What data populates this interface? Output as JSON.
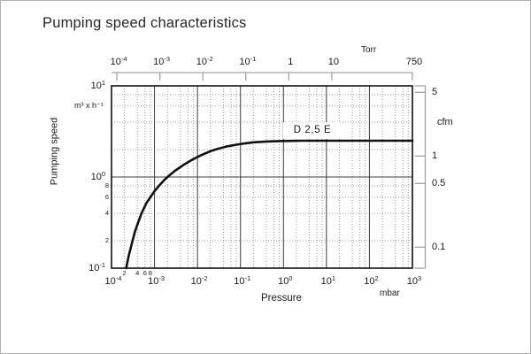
{
  "chart_data": {
    "type": "line",
    "title": "Pumping speed characteristics",
    "x_axis": {
      "label": "Pressure",
      "unit": "mbar",
      "scale": "log",
      "range": [
        0.0001,
        1000
      ],
      "ticks": [
        {
          "v": 0.0001,
          "m": "10",
          "e": "-4"
        },
        {
          "v": 0.001,
          "m": "10",
          "e": "-3"
        },
        {
          "v": 0.01,
          "m": "10",
          "e": "-2"
        },
        {
          "v": 0.1,
          "m": "10",
          "e": "-1"
        },
        {
          "v": 1,
          "m": "10",
          "e": "0"
        },
        {
          "v": 10,
          "m": "10",
          "e": "1"
        },
        {
          "v": 100,
          "m": "10",
          "e": "2"
        },
        {
          "v": 1000,
          "m": "10",
          "e": "3"
        }
      ],
      "minor_labels": [
        {
          "v": 0.0002,
          "m": "2"
        },
        {
          "v": 0.0004,
          "m": "4"
        },
        {
          "v": 0.0006,
          "m": "6"
        },
        {
          "v": 0.0008,
          "m": "8"
        }
      ],
      "minor_grid_multiples": [
        2,
        4,
        6,
        8
      ]
    },
    "y_axis": {
      "label": "Pumping speed",
      "unit": "m³ x h⁻¹",
      "scale": "log",
      "range": [
        0.1,
        10
      ],
      "ticks": [
        {
          "v": 10,
          "m": "10",
          "e": "1"
        },
        {
          "v": 1,
          "m": "10",
          "e": "0"
        },
        {
          "v": 0.1,
          "m": "10",
          "e": "-1"
        }
      ],
      "minor_labels": [
        {
          "v": 0.8,
          "m": "8"
        },
        {
          "v": 0.6,
          "m": "6"
        },
        {
          "v": 0.4,
          "m": "4"
        },
        {
          "v": 0.2,
          "m": "2"
        }
      ],
      "minor_grid_multiples": [
        2,
        4,
        6,
        8
      ]
    },
    "top_axis": {
      "unit": "Torr",
      "torr_per_mbar": 0.75,
      "ticks": [
        {
          "v": 0.0001,
          "m": "10",
          "e": "-4"
        },
        {
          "v": 0.001,
          "m": "10",
          "e": "-3"
        },
        {
          "v": 0.01,
          "m": "10",
          "e": "-2"
        },
        {
          "v": 0.1,
          "m": "10",
          "e": "-1"
        },
        {
          "v": 1,
          "m": "1"
        },
        {
          "v": 10,
          "m": "10"
        },
        {
          "v": 750,
          "m": "750"
        }
      ]
    },
    "right_axis": {
      "unit": "cfm",
      "cfm_per_m3h": 0.58858,
      "ticks": [
        {
          "v": 5,
          "m": "5"
        },
        {
          "v": 1,
          "m": "1"
        },
        {
          "v": 0.5,
          "m": "0.5"
        },
        {
          "v": 0.1,
          "m": "0.1"
        }
      ]
    },
    "series": [
      {
        "name": "D 2,5 E",
        "plateau_speed_m3h": 2.5,
        "points": [
          [
            0.00022,
            0.1
          ],
          [
            0.00025,
            0.135
          ],
          [
            0.0003,
            0.19
          ],
          [
            0.00035,
            0.25
          ],
          [
            0.0004,
            0.3
          ],
          [
            0.0005,
            0.4
          ],
          [
            0.00065,
            0.52
          ],
          [
            0.0008,
            0.6
          ],
          [
            0.001,
            0.7
          ],
          [
            0.0013,
            0.81
          ],
          [
            0.0017,
            0.93
          ],
          [
            0.002,
            1.0
          ],
          [
            0.003,
            1.17
          ],
          [
            0.005,
            1.38
          ],
          [
            0.008,
            1.57
          ],
          [
            0.012,
            1.73
          ],
          [
            0.02,
            1.92
          ],
          [
            0.03,
            2.04
          ],
          [
            0.05,
            2.17
          ],
          [
            0.08,
            2.26
          ],
          [
            0.12,
            2.33
          ],
          [
            0.2,
            2.4
          ],
          [
            0.4,
            2.45
          ],
          [
            0.8,
            2.48
          ],
          [
            1.5,
            2.49
          ],
          [
            3,
            2.5
          ],
          [
            10,
            2.5
          ],
          [
            100,
            2.5
          ],
          [
            1000,
            2.5
          ]
        ]
      }
    ],
    "grid": "major-and-minor-log",
    "colors": {
      "curve": "#111111",
      "major_grid": "#3c3c3c",
      "minor_grid": "#9b9b9b",
      "secondary_axis": "#a3a3a3",
      "text": "#1a1a1a"
    }
  }
}
